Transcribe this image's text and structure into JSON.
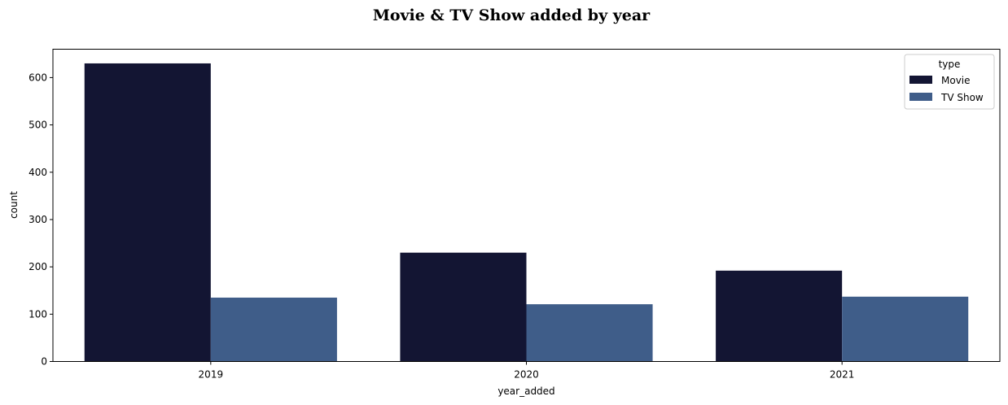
{
  "chart_data": {
    "type": "bar",
    "title": "Movie & TV Show added by year",
    "xlabel": "year_added",
    "ylabel": "count",
    "categories": [
      "2019",
      "2020",
      "2021"
    ],
    "series": [
      {
        "name": "Movie",
        "values": [
          630,
          230,
          192
        ],
        "color": "#131533"
      },
      {
        "name": "TV Show",
        "values": [
          135,
          121,
          137
        ],
        "color": "#3f5d89"
      }
    ],
    "ylim": [
      0,
      660
    ],
    "yticks": [
      0,
      100,
      200,
      300,
      400,
      500,
      600
    ],
    "legend": {
      "title": "type",
      "position": "top-right"
    },
    "grid": false
  }
}
